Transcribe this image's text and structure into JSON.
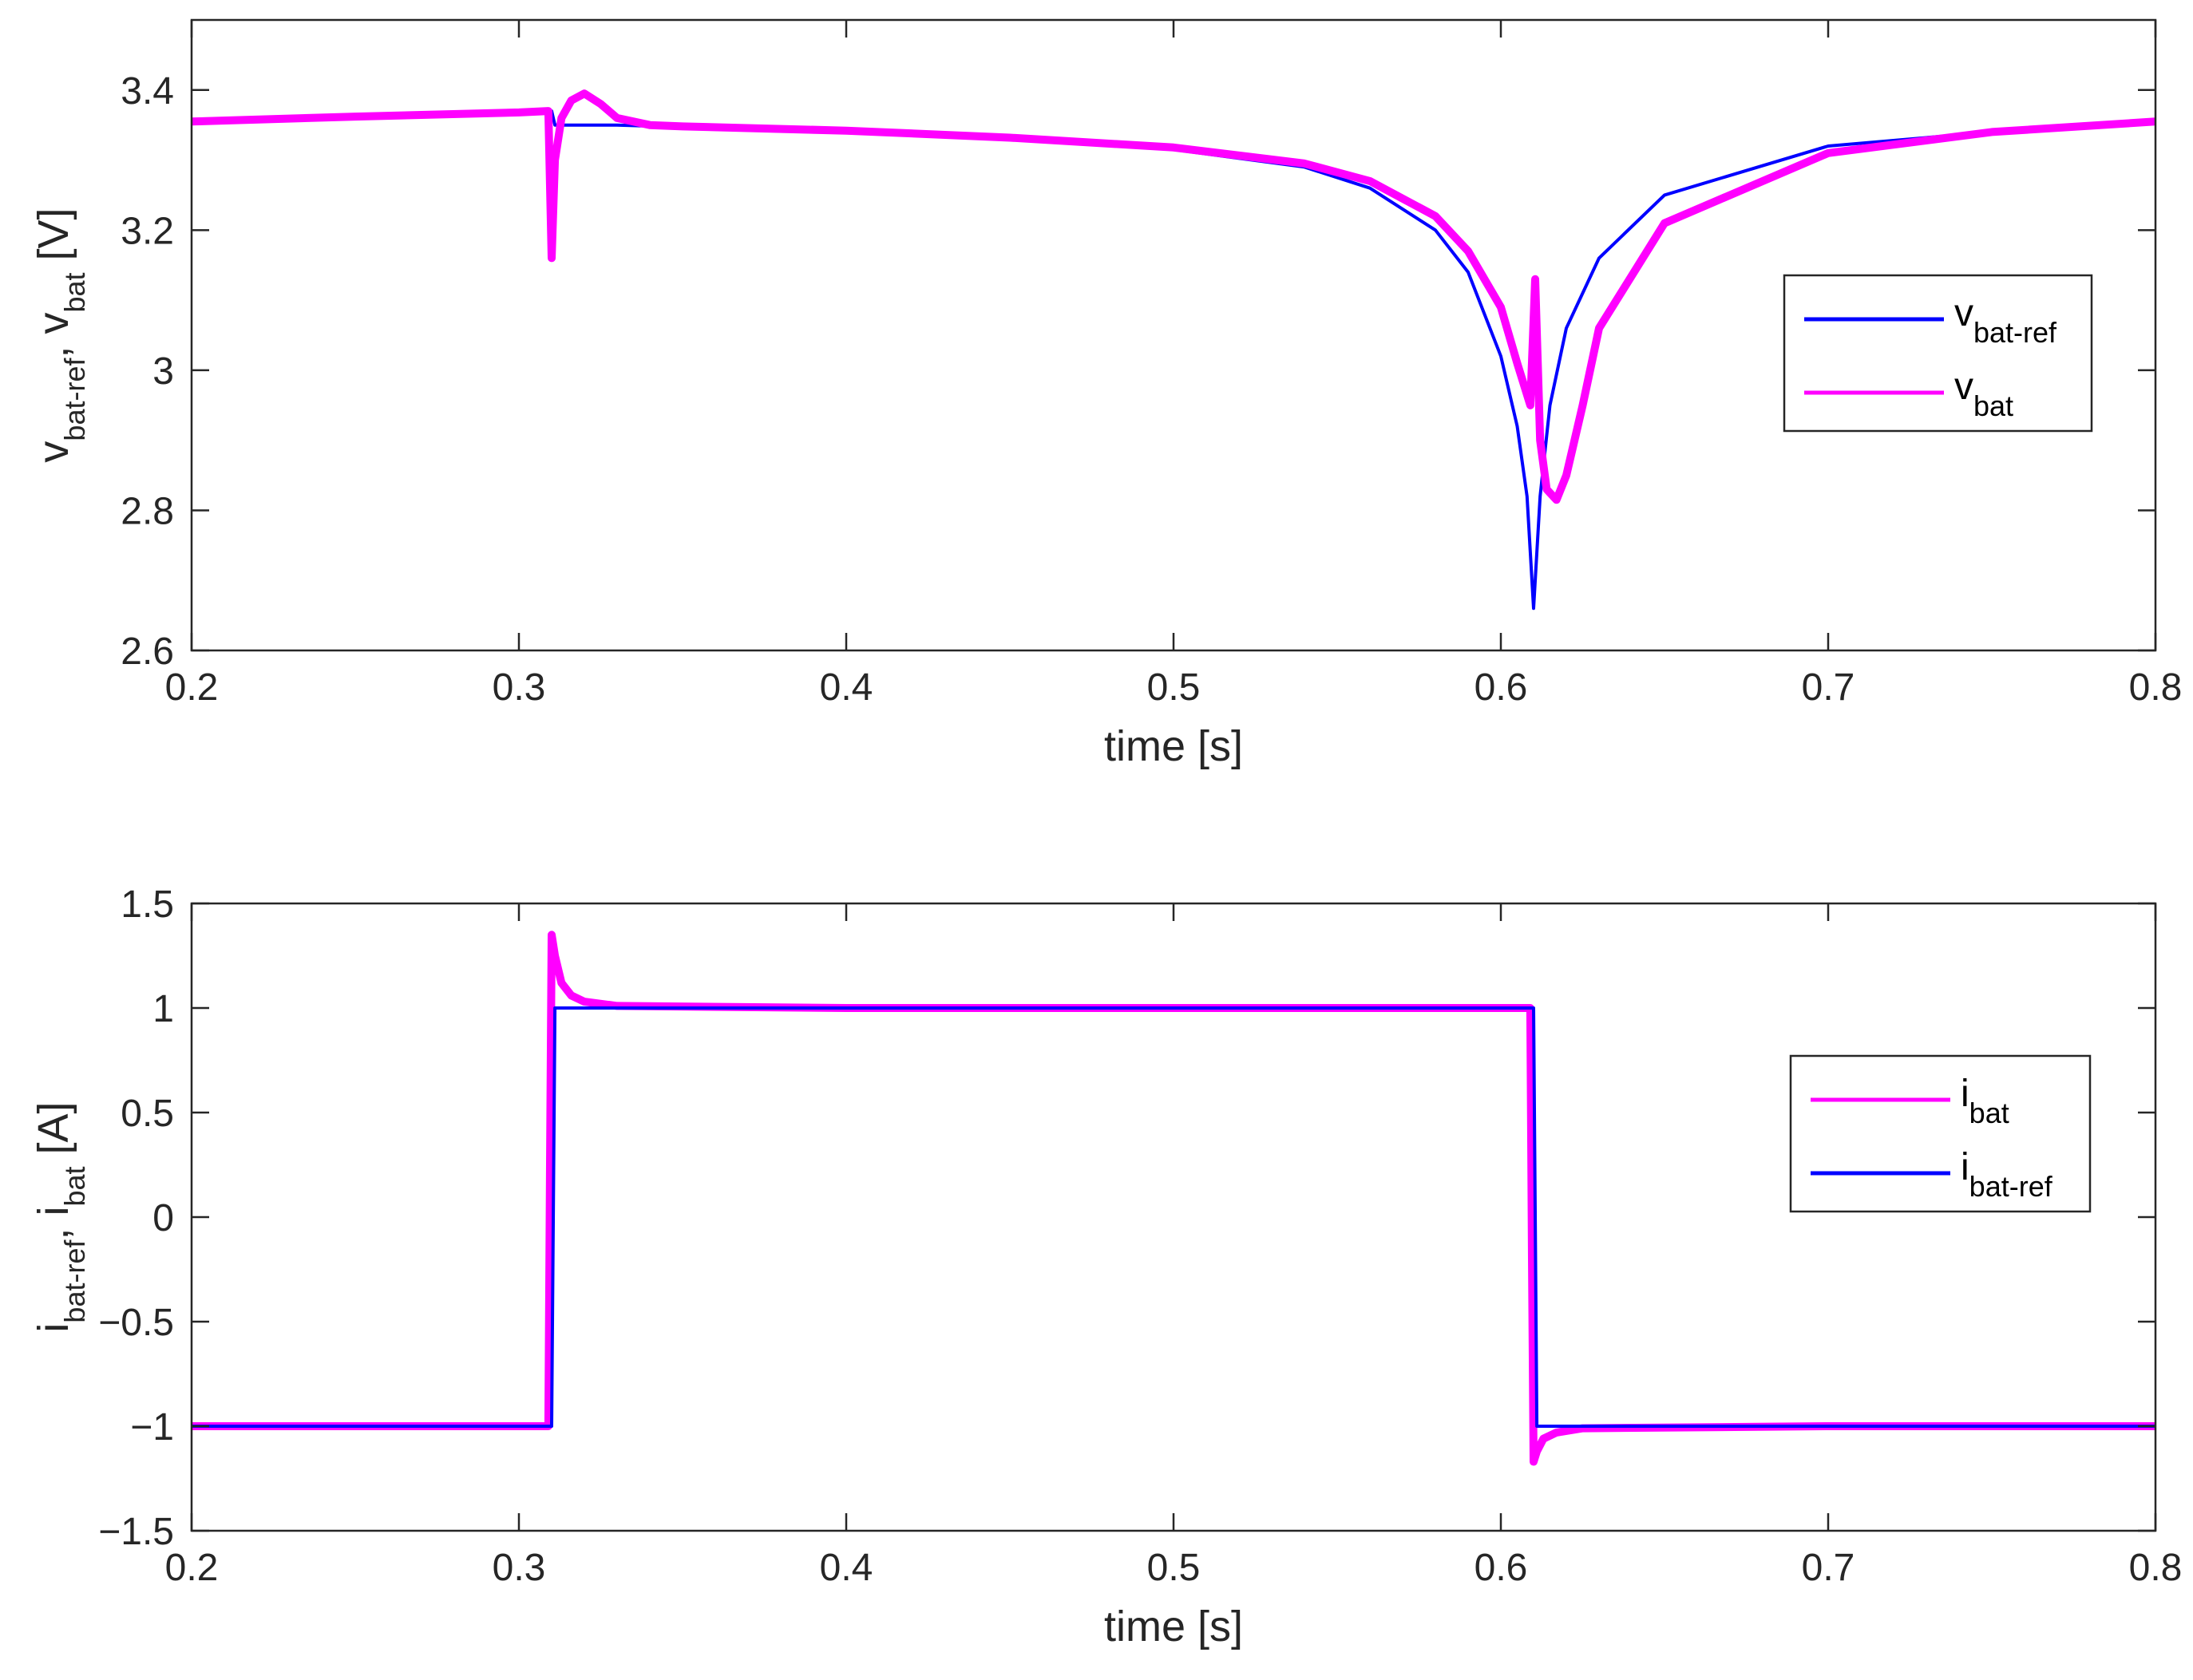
{
  "chart_data": [
    {
      "type": "line",
      "xlabel": "time [s]",
      "ylabel": {
        "parts": [
          {
            "t": "v"
          },
          {
            "t": "bat-ref",
            "sub": true
          },
          {
            "t": ", v"
          },
          {
            "t": "bat",
            "sub": true
          },
          {
            "t": " [V]"
          }
        ]
      },
      "xlim": [
        0.2,
        0.8
      ],
      "ylim": [
        2.6,
        3.5
      ],
      "xticks": [
        0.2,
        0.3,
        0.4,
        0.5,
        0.6,
        0.7,
        0.8
      ],
      "xtick_labels": [
        "0.2",
        "0.3",
        "0.4",
        "0.5",
        "0.6",
        "0.7",
        "0.8"
      ],
      "yticks": [
        2.6,
        2.8,
        3.0,
        3.2,
        3.4
      ],
      "ytick_labels": [
        "2.6",
        "2.8",
        "3",
        "3.2",
        "3.4"
      ],
      "grid": false,
      "legend_position": "right",
      "series": [
        {
          "name": "v_bat-ref",
          "label_parts": [
            {
              "t": "v"
            },
            {
              "t": "bat-ref",
              "sub": true
            }
          ],
          "color": "#0000ff",
          "x": [
            0.2,
            0.25,
            0.3,
            0.31,
            0.311,
            0.33,
            0.35,
            0.4,
            0.45,
            0.5,
            0.54,
            0.56,
            0.58,
            0.59,
            0.6,
            0.605,
            0.608,
            0.61,
            0.612,
            0.615,
            0.62,
            0.63,
            0.65,
            0.7,
            0.75,
            0.8
          ],
          "y": [
            3.355,
            3.362,
            3.368,
            3.37,
            3.35,
            3.35,
            3.347,
            3.34,
            3.33,
            3.315,
            3.29,
            3.26,
            3.2,
            3.14,
            3.02,
            2.92,
            2.82,
            2.66,
            2.82,
            2.95,
            3.06,
            3.16,
            3.25,
            3.32,
            3.34,
            3.355
          ]
        },
        {
          "name": "v_bat",
          "label_parts": [
            {
              "t": "v"
            },
            {
              "t": "bat",
              "sub": true
            }
          ],
          "color": "#ff00ff",
          "x": [
            0.2,
            0.25,
            0.3,
            0.309,
            0.31,
            0.311,
            0.313,
            0.316,
            0.32,
            0.325,
            0.33,
            0.34,
            0.35,
            0.4,
            0.45,
            0.5,
            0.54,
            0.56,
            0.58,
            0.59,
            0.6,
            0.605,
            0.609,
            0.6105,
            0.612,
            0.614,
            0.617,
            0.62,
            0.625,
            0.63,
            0.65,
            0.7,
            0.75,
            0.8
          ],
          "y": [
            3.355,
            3.362,
            3.368,
            3.37,
            3.16,
            3.3,
            3.36,
            3.385,
            3.395,
            3.38,
            3.36,
            3.35,
            3.348,
            3.342,
            3.332,
            3.318,
            3.295,
            3.27,
            3.22,
            3.17,
            3.09,
            3.01,
            2.95,
            3.13,
            2.9,
            2.83,
            2.815,
            2.85,
            2.95,
            3.06,
            3.21,
            3.31,
            3.34,
            3.355
          ]
        }
      ]
    },
    {
      "type": "line",
      "xlabel": "time [s]",
      "ylabel": {
        "parts": [
          {
            "t": "i"
          },
          {
            "t": "bat-ref",
            "sub": true
          },
          {
            "t": ", i"
          },
          {
            "t": "bat",
            "sub": true
          },
          {
            "t": " [A]"
          }
        ]
      },
      "xlim": [
        0.2,
        0.8
      ],
      "ylim": [
        -1.5,
        1.5
      ],
      "xticks": [
        0.2,
        0.3,
        0.4,
        0.5,
        0.6,
        0.7,
        0.8
      ],
      "xtick_labels": [
        "0.2",
        "0.3",
        "0.4",
        "0.5",
        "0.6",
        "0.7",
        "0.8"
      ],
      "yticks": [
        -1.5,
        -1,
        -0.5,
        0,
        0.5,
        1,
        1.5
      ],
      "ytick_labels": [
        "−1.5",
        "−1",
        "−0.5",
        "0",
        "0.5",
        "1",
        "1.5"
      ],
      "grid": false,
      "legend_position": "right",
      "series": [
        {
          "name": "i_bat",
          "label_parts": [
            {
              "t": "i"
            },
            {
              "t": "bat",
              "sub": true
            }
          ],
          "color": "#ff00ff",
          "x": [
            0.2,
            0.309,
            0.3095,
            0.31,
            0.311,
            0.313,
            0.316,
            0.32,
            0.33,
            0.4,
            0.5,
            0.6,
            0.609,
            0.6095,
            0.61,
            0.611,
            0.613,
            0.617,
            0.625,
            0.7,
            0.8
          ],
          "y": [
            -1.0,
            -1.0,
            0.2,
            1.35,
            1.25,
            1.12,
            1.06,
            1.03,
            1.01,
            1.0,
            1.0,
            1.0,
            1.0,
            -0.2,
            -1.17,
            -1.12,
            -1.06,
            -1.03,
            -1.01,
            -1.0,
            -1.0
          ]
        },
        {
          "name": "i_bat-ref",
          "label_parts": [
            {
              "t": "i"
            },
            {
              "t": "bat-ref",
              "sub": true
            }
          ],
          "color": "#0000ff",
          "x": [
            0.2,
            0.31,
            0.311,
            0.61,
            0.611,
            0.8
          ],
          "y": [
            -1.0,
            -1.0,
            1.0,
            1.0,
            -1.0,
            -1.0
          ]
        }
      ]
    }
  ]
}
